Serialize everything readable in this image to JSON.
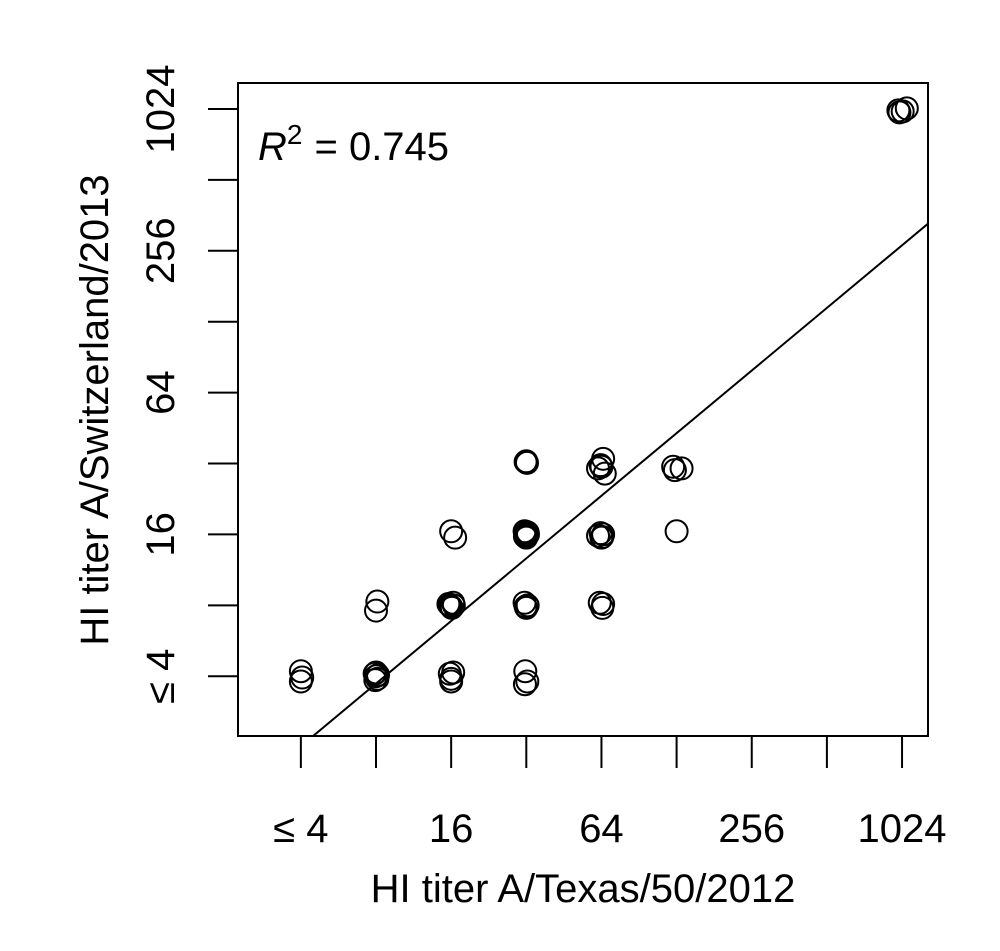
{
  "chart_data": {
    "type": "scatter",
    "x_label": "HI titer A/Texas/50/2012",
    "y_label": "HI titer A/Switzerland/2013",
    "annotation": {
      "symbol": "R",
      "superscript": "2",
      "relation": "= 0.745"
    },
    "log_scale": {
      "x": 2,
      "y": 2
    },
    "color": "#000000",
    "x": [
      4,
      4.05,
      4,
      7.9,
      8,
      8.1,
      8,
      7.95,
      8.15,
      8,
      8.1,
      15.6,
      16,
      16.3,
      15.8,
      16.1,
      16.4,
      15.8,
      16,
      16.3,
      16,
      16,
      16.6,
      31.7,
      32.3,
      31.6,
      31.5,
      32,
      32.4,
      31.8,
      31.5,
      32,
      32.4,
      31.8,
      32.2,
      31.6,
      32.5,
      32,
      31.8,
      32.2,
      32,
      63,
      64.5,
      65,
      62,
      63.5,
      64.5,
      65,
      64,
      62,
      63.5,
      65,
      66,
      64,
      124,
      126,
      134,
      128,
      990,
      1000,
      1030,
      1070
    ],
    "values": [
      4.2,
      3.95,
      3.8,
      4.1,
      4,
      3.9,
      4.15,
      3.85,
      4.05,
      7.6,
      8.3,
      8.1,
      7.9,
      8.2,
      8,
      7.8,
      8,
      4.1,
      3.9,
      4.15,
      3.8,
      16.5,
      15.5,
      4.2,
      3.8,
      3.7,
      8.2,
      7.8,
      8,
      7.9,
      16.5,
      15.5,
      16.3,
      16,
      15.8,
      15.7,
      16,
      16.4,
      32.5,
      32.2,
      32.7,
      8.2,
      7.8,
      8.1,
      15.8,
      16.2,
      15.6,
      16,
      15.5,
      30.5,
      31.5,
      33.5,
      29,
      31,
      31,
      30,
      30.5,
      16.5,
      1010,
      990,
      1000,
      1030
    ],
    "fit": {
      "slope": 0.883,
      "intercept": -0.753
    },
    "xlim": [
      2.24,
      1301
    ],
    "ylim": [
      2.23,
      1320
    ],
    "xticks": [
      {
        "value": 4,
        "label": "≤ 4"
      },
      16,
      64,
      256,
      1024
    ],
    "xminorticks": [
      8,
      32,
      128,
      512
    ],
    "yticks": [
      {
        "value": 4,
        "label": "≤ 4"
      },
      16,
      64,
      256,
      1024
    ],
    "yminorticks": [
      8,
      32,
      128,
      512
    ]
  }
}
